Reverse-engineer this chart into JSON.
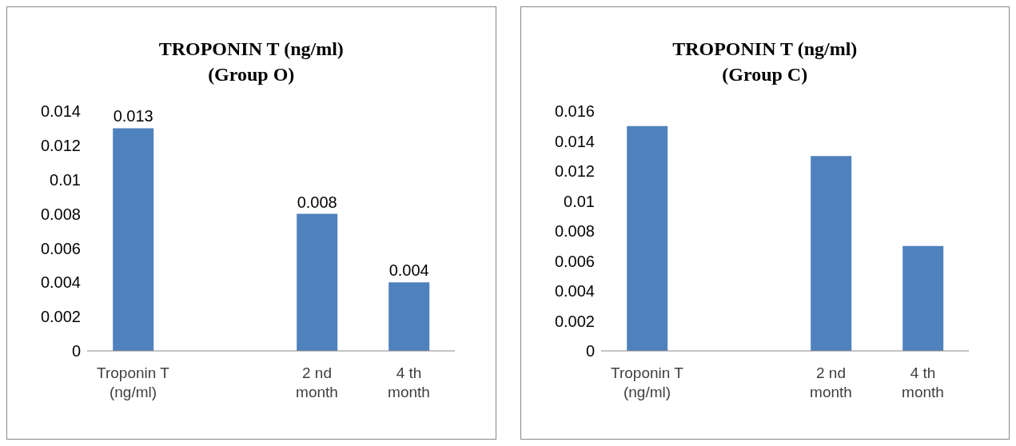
{
  "chart_data": [
    {
      "type": "bar",
      "title": "TROPONIN T (ng/ml)\n(Group O)",
      "categories": [
        "Troponin T (ng/ml)",
        null,
        "2 nd month",
        "4 th month"
      ],
      "values": [
        0.013,
        null,
        0.008,
        0.004
      ],
      "color": "#4f81bd",
      "ylim": [
        0,
        0.014
      ],
      "yticks": [
        0,
        0.002,
        0.004,
        0.006,
        0.008,
        0.01,
        0.012,
        0.014
      ],
      "data_labels": true,
      "grid": false,
      "legend": false
    },
    {
      "type": "bar",
      "title": "TROPONIN T (ng/ml)\n(Group C)",
      "categories": [
        "Troponin T (ng/ml)",
        null,
        "2 nd month",
        "4 th month"
      ],
      "values": [
        0.015,
        null,
        0.013,
        0.007
      ],
      "color": "#4f81bd",
      "ylim": [
        0,
        0.016
      ],
      "yticks": [
        0,
        0.002,
        0.004,
        0.006,
        0.008,
        0.01,
        0.012,
        0.014,
        0.016
      ],
      "grid": false,
      "legend": false
    }
  ]
}
